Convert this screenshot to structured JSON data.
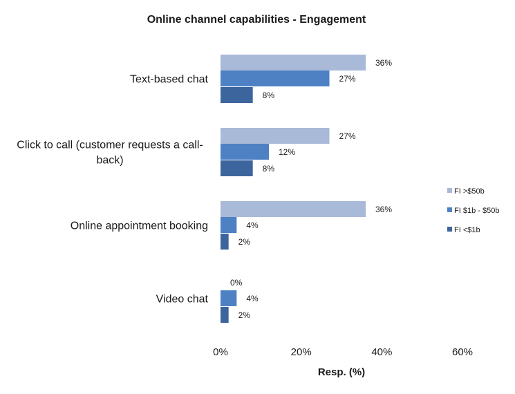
{
  "chart_data": {
    "type": "bar",
    "orientation": "horizontal",
    "title": "Online channel capabilities - Engagement",
    "xlabel": "Resp. (%)",
    "ylabel": "",
    "xlim": [
      0,
      60
    ],
    "xticks": [
      0,
      20,
      40,
      60
    ],
    "xtick_suffix": "%",
    "grid": false,
    "legend_position": "right",
    "categories": [
      [
        "Text-based chat"
      ],
      [
        "Click to call (customer requests a call-",
        "back)"
      ],
      [
        "Online appointment booking"
      ],
      [
        "Video chat"
      ]
    ],
    "series": [
      {
        "name": "FI >$50b",
        "values": [
          36,
          27,
          36,
          0
        ],
        "color": "#A9B9D8"
      },
      {
        "name": "FI $1b - $50b",
        "values": [
          27,
          12,
          4,
          4
        ],
        "color": "#4E81C4"
      },
      {
        "name": "FI <$1b",
        "values": [
          8,
          8,
          2,
          2
        ],
        "color": "#3C659D"
      }
    ]
  }
}
